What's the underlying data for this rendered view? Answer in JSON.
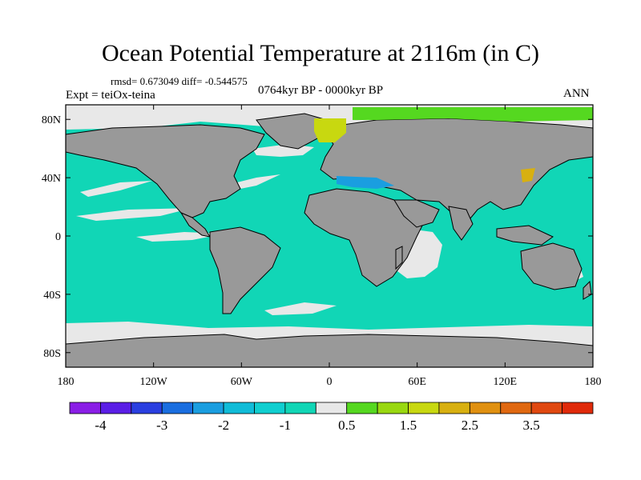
{
  "title": "Ocean Potential Temperature at 2116m (in C)",
  "stats_text": "rmsd= 0.673049 diff= -0.544575",
  "expt_text": "Expt = teiOx-teina",
  "period_text": "0764kyr BP - 0000kyr BP",
  "season_text": "ANN",
  "colors": {
    "land": "#999999",
    "background_ocean": "#11d6b6",
    "near_zero": "#e8e8e8",
    "coastline": "#000000"
  },
  "map": {
    "projection": "cylindrical-equidistant",
    "lon_range": [
      -180,
      180
    ],
    "lat_range": [
      -90,
      90
    ],
    "lon_ticks": [
      {
        "value": -180,
        "label": "180"
      },
      {
        "value": -120,
        "label": "120W"
      },
      {
        "value": -60,
        "label": "60W"
      },
      {
        "value": 0,
        "label": "0"
      },
      {
        "value": 60,
        "label": "60E"
      },
      {
        "value": 120,
        "label": "120E"
      },
      {
        "value": 180,
        "label": "180"
      }
    ],
    "lat_ticks": [
      {
        "value": 80,
        "label": "80N"
      },
      {
        "value": 40,
        "label": "40N"
      },
      {
        "value": 0,
        "label": "0"
      },
      {
        "value": -40,
        "label": "40S"
      },
      {
        "value": -80,
        "label": "80S"
      }
    ]
  },
  "colorbar": {
    "colors": [
      "#8a1ee6",
      "#5a1ee6",
      "#2a3fe0",
      "#1a6ee0",
      "#1a9ee0",
      "#10bcd8",
      "#10cfd0",
      "#11d6b6",
      "#e8e8e8",
      "#55d820",
      "#99d810",
      "#c8d810",
      "#d8b010",
      "#e09010",
      "#e06810",
      "#e04810",
      "#e02a0a"
    ],
    "labels": [
      {
        "after_box": 1,
        "text": "-4"
      },
      {
        "after_box": 3,
        "text": "-3"
      },
      {
        "after_box": 5,
        "text": "-2"
      },
      {
        "after_box": 7,
        "text": "-1"
      },
      {
        "after_box": 9,
        "text": "0.5"
      },
      {
        "after_box": 11,
        "text": "1.5"
      },
      {
        "after_box": 13,
        "text": "2.5"
      },
      {
        "after_box": 15,
        "text": "3.5"
      }
    ]
  }
}
